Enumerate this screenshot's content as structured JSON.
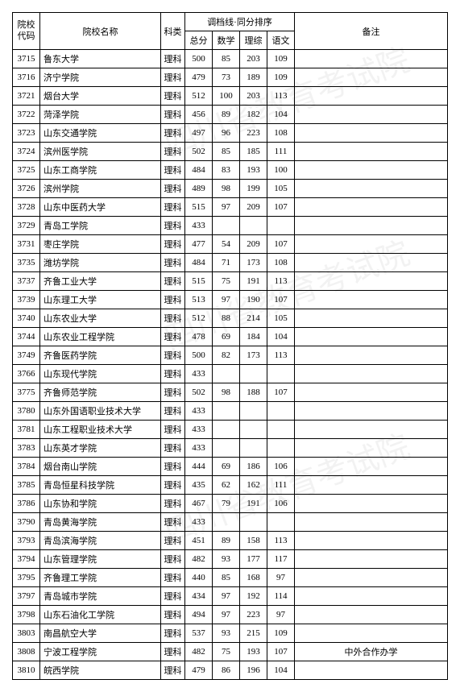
{
  "headers": {
    "code": "院校\n代码",
    "name": "院校名称",
    "category": "科类",
    "group": "调档线·同分排序",
    "total": "总分",
    "math": "数学",
    "comp": "理综",
    "chinese": "语文",
    "remark": "备注"
  },
  "col_widths": {
    "code": 34,
    "name": 150,
    "category": 30,
    "total": 34,
    "math": 34,
    "comp": 34,
    "chinese": 34,
    "remark": 130
  },
  "rows": [
    {
      "code": "3715",
      "name": "鲁东大学",
      "cat": "理科",
      "t": "500",
      "m": "85",
      "c": "203",
      "ch": "109",
      "r": ""
    },
    {
      "code": "3716",
      "name": "济宁学院",
      "cat": "理科",
      "t": "479",
      "m": "73",
      "c": "189",
      "ch": "109",
      "r": ""
    },
    {
      "code": "3721",
      "name": "烟台大学",
      "cat": "理科",
      "t": "512",
      "m": "100",
      "c": "203",
      "ch": "113",
      "r": ""
    },
    {
      "code": "3722",
      "name": "菏泽学院",
      "cat": "理科",
      "t": "456",
      "m": "89",
      "c": "182",
      "ch": "104",
      "r": ""
    },
    {
      "code": "3723",
      "name": "山东交通学院",
      "cat": "理科",
      "t": "497",
      "m": "96",
      "c": "223",
      "ch": "108",
      "r": ""
    },
    {
      "code": "3724",
      "name": "滨州医学院",
      "cat": "理科",
      "t": "502",
      "m": "85",
      "c": "185",
      "ch": "111",
      "r": ""
    },
    {
      "code": "3725",
      "name": "山东工商学院",
      "cat": "理科",
      "t": "484",
      "m": "83",
      "c": "193",
      "ch": "100",
      "r": ""
    },
    {
      "code": "3726",
      "name": "滨州学院",
      "cat": "理科",
      "t": "489",
      "m": "98",
      "c": "199",
      "ch": "105",
      "r": ""
    },
    {
      "code": "3728",
      "name": "山东中医药大学",
      "cat": "理科",
      "t": "515",
      "m": "97",
      "c": "209",
      "ch": "107",
      "r": ""
    },
    {
      "code": "3729",
      "name": "青岛工学院",
      "cat": "理科",
      "t": "433",
      "m": "",
      "c": "",
      "ch": "",
      "r": ""
    },
    {
      "code": "3731",
      "name": "枣庄学院",
      "cat": "理科",
      "t": "477",
      "m": "54",
      "c": "209",
      "ch": "107",
      "r": ""
    },
    {
      "code": "3735",
      "name": "潍坊学院",
      "cat": "理科",
      "t": "484",
      "m": "71",
      "c": "173",
      "ch": "108",
      "r": ""
    },
    {
      "code": "3737",
      "name": "齐鲁工业大学",
      "cat": "理科",
      "t": "515",
      "m": "75",
      "c": "191",
      "ch": "113",
      "r": ""
    },
    {
      "code": "3739",
      "name": "山东理工大学",
      "cat": "理科",
      "t": "513",
      "m": "97",
      "c": "190",
      "ch": "107",
      "r": ""
    },
    {
      "code": "3740",
      "name": "山东农业大学",
      "cat": "理科",
      "t": "512",
      "m": "88",
      "c": "214",
      "ch": "105",
      "r": ""
    },
    {
      "code": "3744",
      "name": "山东农业工程学院",
      "cat": "理科",
      "t": "478",
      "m": "69",
      "c": "184",
      "ch": "104",
      "r": ""
    },
    {
      "code": "3749",
      "name": "齐鲁医药学院",
      "cat": "理科",
      "t": "500",
      "m": "82",
      "c": "173",
      "ch": "113",
      "r": ""
    },
    {
      "code": "3766",
      "name": "山东现代学院",
      "cat": "理科",
      "t": "433",
      "m": "",
      "c": "",
      "ch": "",
      "r": ""
    },
    {
      "code": "3775",
      "name": "齐鲁师范学院",
      "cat": "理科",
      "t": "502",
      "m": "98",
      "c": "188",
      "ch": "107",
      "r": ""
    },
    {
      "code": "3780",
      "name": "山东外国语职业技术大学",
      "cat": "理科",
      "t": "433",
      "m": "",
      "c": "",
      "ch": "",
      "r": ""
    },
    {
      "code": "3781",
      "name": "山东工程职业技术大学",
      "cat": "理科",
      "t": "433",
      "m": "",
      "c": "",
      "ch": "",
      "r": ""
    },
    {
      "code": "3783",
      "name": "山东英才学院",
      "cat": "理科",
      "t": "433",
      "m": "",
      "c": "",
      "ch": "",
      "r": ""
    },
    {
      "code": "3784",
      "name": "烟台南山学院",
      "cat": "理科",
      "t": "444",
      "m": "69",
      "c": "186",
      "ch": "106",
      "r": ""
    },
    {
      "code": "3785",
      "name": "青岛恒星科技学院",
      "cat": "理科",
      "t": "435",
      "m": "62",
      "c": "162",
      "ch": "111",
      "r": ""
    },
    {
      "code": "3786",
      "name": "山东协和学院",
      "cat": "理科",
      "t": "467",
      "m": "79",
      "c": "191",
      "ch": "106",
      "r": ""
    },
    {
      "code": "3790",
      "name": "青岛黄海学院",
      "cat": "理科",
      "t": "433",
      "m": "",
      "c": "",
      "ch": "",
      "r": ""
    },
    {
      "code": "3793",
      "name": "青岛滨海学院",
      "cat": "理科",
      "t": "451",
      "m": "89",
      "c": "158",
      "ch": "113",
      "r": ""
    },
    {
      "code": "3794",
      "name": "山东管理学院",
      "cat": "理科",
      "t": "482",
      "m": "93",
      "c": "177",
      "ch": "117",
      "r": ""
    },
    {
      "code": "3795",
      "name": "齐鲁理工学院",
      "cat": "理科",
      "t": "440",
      "m": "85",
      "c": "168",
      "ch": "97",
      "r": ""
    },
    {
      "code": "3797",
      "name": "青岛城市学院",
      "cat": "理科",
      "t": "434",
      "m": "97",
      "c": "192",
      "ch": "114",
      "r": ""
    },
    {
      "code": "3798",
      "name": "山东石油化工学院",
      "cat": "理科",
      "t": "494",
      "m": "97",
      "c": "223",
      "ch": "97",
      "r": ""
    },
    {
      "code": "3803",
      "name": "南昌航空大学",
      "cat": "理科",
      "t": "537",
      "m": "93",
      "c": "215",
      "ch": "109",
      "r": ""
    },
    {
      "code": "3808",
      "name": "宁波工程学院",
      "cat": "理科",
      "t": "482",
      "m": "75",
      "c": "193",
      "ch": "107",
      "r": "中外合作办学"
    },
    {
      "code": "3810",
      "name": "皖西学院",
      "cat": "理科",
      "t": "479",
      "m": "86",
      "c": "196",
      "ch": "104",
      "r": ""
    }
  ]
}
